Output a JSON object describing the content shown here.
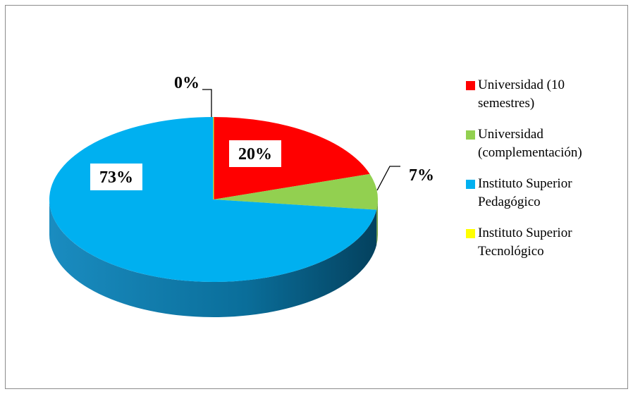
{
  "chart_data": {
    "type": "pie3d",
    "categories": [
      "Universidad (10 semestres)",
      "Universidad (complementación)",
      "Instituto Superior Pedagógico",
      "Instituto Superior Tecnológico"
    ],
    "values": [
      20,
      7,
      73,
      0
    ],
    "value_labels": [
      "20%",
      "7%",
      "73%",
      "0%"
    ],
    "colors": [
      "#ff0000",
      "#92d050",
      "#00b0f0",
      "#ffff00"
    ],
    "side_colors": [
      "#c00000",
      "#6e9c3c",
      "#0a86b8",
      "#c0c000"
    ],
    "legend": "right"
  }
}
